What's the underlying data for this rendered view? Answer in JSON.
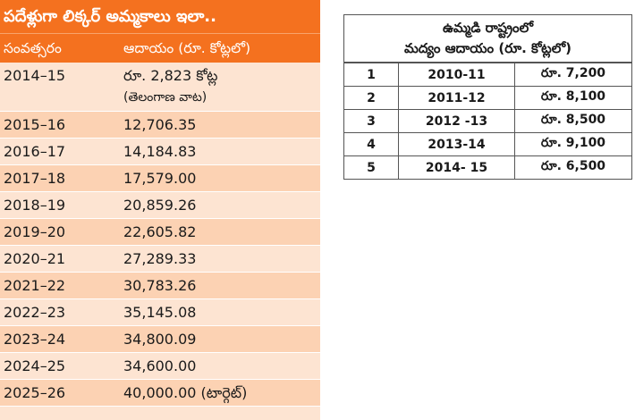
{
  "left_table": {
    "title": "పదేళ్లుగా లిక్కర్ అమ్మకాలు ఇలా..",
    "header": {
      "year": "సంవత్సరం",
      "revenue": "ఆదాయం (రూ. కోట్లలో)"
    },
    "rows": [
      {
        "year": "2014–15",
        "revenue": "రూ. 2,823 కోట్ల",
        "note": "(తెలంగాణ వాట)"
      },
      {
        "year": "2015–16",
        "revenue": "12,706.35"
      },
      {
        "year": "2016–17",
        "revenue": "14,184.83"
      },
      {
        "year": "2017–18",
        "revenue": "17,579.00"
      },
      {
        "year": "2018–19",
        "revenue": "20,859.26"
      },
      {
        "year": "2019–20",
        "revenue": "22,605.82"
      },
      {
        "year": "2020–21",
        "revenue": "27,289.33"
      },
      {
        "year": "2021–22",
        "revenue": "30,783.26"
      },
      {
        "year": "2022–23",
        "revenue": "35,145.08"
      },
      {
        "year": "2023–24",
        "revenue": "34,800.09"
      },
      {
        "year": "2024–25",
        "revenue": "34,600.00"
      },
      {
        "year": "2025–26",
        "revenue": "40,000.00 (టార్గెట్)"
      }
    ]
  },
  "right_table": {
    "title_line1": "ఉమ్మడి రాష్ట్రంలో",
    "title_line2": "మద్యం ఆదాయం (రూ. కోట్లలో)",
    "rows": [
      {
        "no": "1",
        "year": "2010-11",
        "revenue": "రూ. 7,200"
      },
      {
        "no": "2",
        "year": "2011-12",
        "revenue": "రూ. 8,100"
      },
      {
        "no": "3",
        "year": "2012 -13",
        "revenue": "రూ. 8,500"
      },
      {
        "no": "4",
        "year": "2013-14",
        "revenue": "రూ. 9,100"
      },
      {
        "no": "5",
        "year": "2014- 15",
        "revenue": "రూ. 6,500"
      }
    ]
  }
}
